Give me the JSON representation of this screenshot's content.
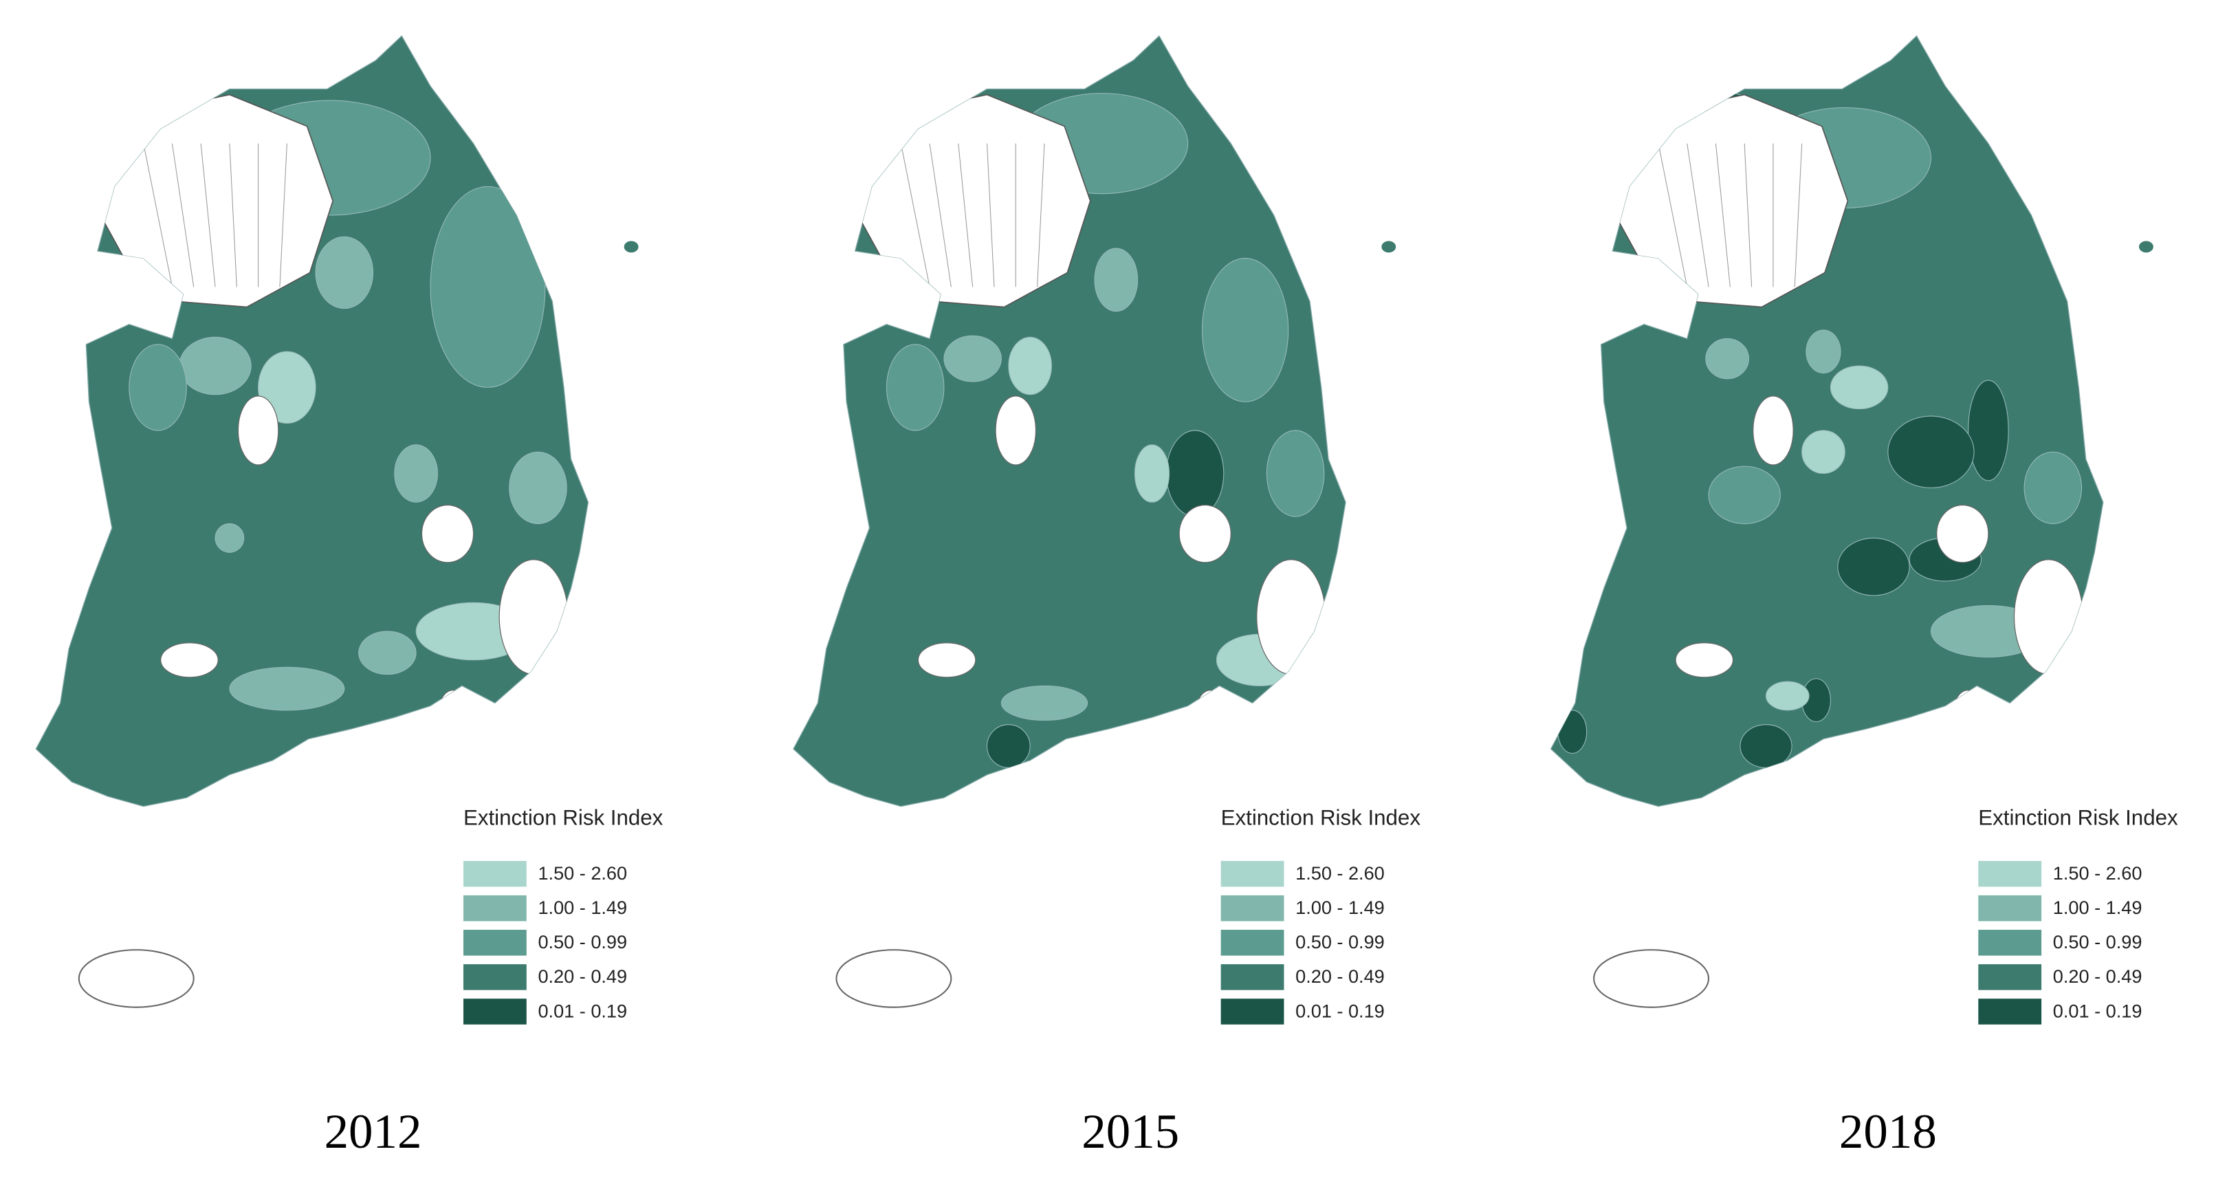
{
  "panels": [
    {
      "year": "2012",
      "legend": {
        "title": "Extinction Risk Index",
        "items": [
          {
            "label": "1.50 - 2.60",
            "color": "#a9d6cc"
          },
          {
            "label": "1.00 - 1.49",
            "color": "#80b6ab"
          },
          {
            "label": "0.50 - 0.99",
            "color": "#5c9b8f"
          },
          {
            "label": "0.20 - 0.49",
            "color": "#3c7b6e"
          },
          {
            "label": "0.01 - 0.19",
            "color": "#1b5548"
          }
        ]
      }
    },
    {
      "year": "2015",
      "legend": {
        "title": "Extinction Risk Index",
        "items": [
          {
            "label": "1.50 - 2.60",
            "color": "#a9d6cc"
          },
          {
            "label": "1.00 - 1.49",
            "color": "#80b6ab"
          },
          {
            "label": "0.50 - 0.99",
            "color": "#5c9b8f"
          },
          {
            "label": "0.20 - 0.49",
            "color": "#3c7b6e"
          },
          {
            "label": "0.01 - 0.19",
            "color": "#1b5548"
          }
        ]
      }
    },
    {
      "year": "2018",
      "legend": {
        "title": "Extinction Risk Index",
        "items": [
          {
            "label": "1.50 - 2.60",
            "color": "#a9d6cc"
          },
          {
            "label": "1.00 - 1.49",
            "color": "#80b6ab"
          },
          {
            "label": "0.50 - 0.99",
            "color": "#5c9b8f"
          },
          {
            "label": "0.20 - 0.49",
            "color": "#3c7b6e"
          },
          {
            "label": "0.01 - 0.19",
            "color": "#1b5548"
          }
        ]
      }
    }
  ]
}
